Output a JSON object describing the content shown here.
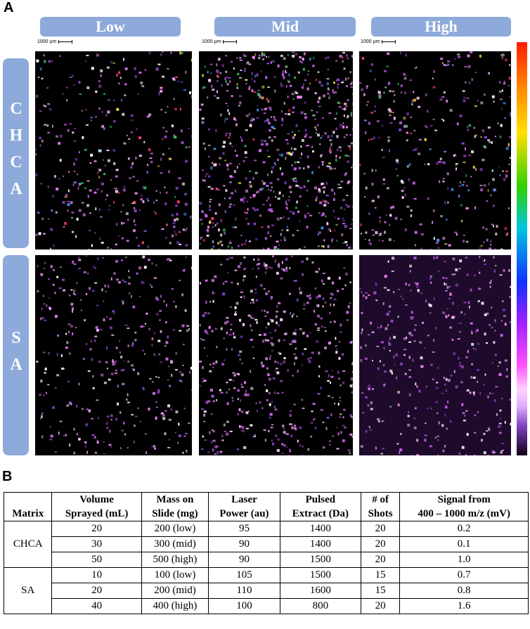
{
  "panel_a": {
    "label": "A",
    "columns": [
      "Low",
      "Mid",
      "High"
    ],
    "rows": [
      "CHCA",
      "SA"
    ],
    "scale_bar_labels": [
      "1000 µm",
      "1000 µm",
      "1000 µm"
    ]
  },
  "panel_b": {
    "label": "B",
    "table": {
      "header": [
        [
          "Matrix"
        ],
        [
          "Volume",
          "Sprayed (mL)"
        ],
        [
          "Mass on",
          "Slide (mg)"
        ],
        [
          "Laser",
          "Power (au)"
        ],
        [
          "Pulsed",
          "Extract (Da)"
        ],
        [
          "# of",
          "Shots"
        ],
        [
          "Signal from",
          "400 – 1000 m/z (mV)"
        ]
      ],
      "groups": [
        {
          "matrix": "CHCA",
          "rows": [
            [
              "20",
              "200 (low)",
              "95",
              "1400",
              "20",
              "0.2"
            ],
            [
              "30",
              "300 (mid)",
              "90",
              "1400",
              "20",
              "0.1"
            ],
            [
              "50",
              "500 (high)",
              "90",
              "1500",
              "20",
              "1.0"
            ]
          ]
        },
        {
          "matrix": "SA",
          "rows": [
            [
              "10",
              "100 (low)",
              "105",
              "1500",
              "15",
              "0.7"
            ],
            [
              "20",
              "200 (mid)",
              "110",
              "1600",
              "15",
              "0.8"
            ],
            [
              "40",
              "400 (high)",
              "100",
              "800",
              "20",
              "1.6"
            ]
          ]
        }
      ]
    }
  }
}
